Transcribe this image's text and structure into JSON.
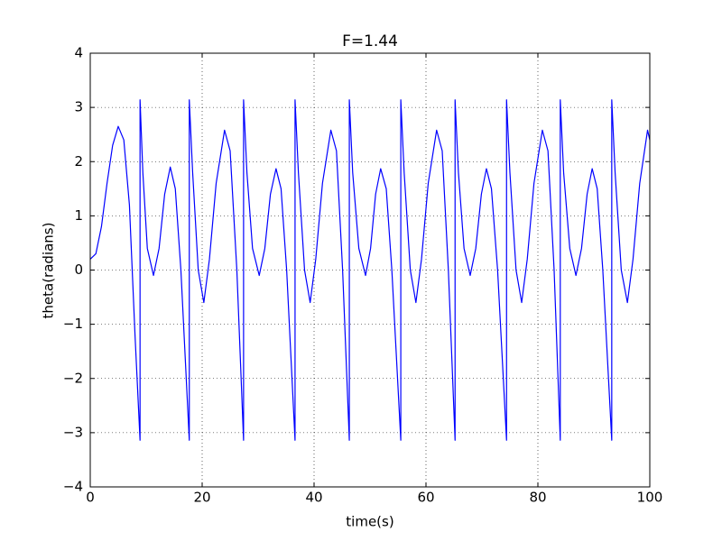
{
  "chart_data": {
    "type": "line",
    "title": "F=1.44",
    "xlabel": "time(s)",
    "ylabel": "theta(radians)",
    "x": [
      0,
      1,
      2,
      3,
      4,
      5,
      6,
      7,
      8,
      8.9,
      8.9,
      9.4,
      10.2,
      11.3,
      12.3,
      13.3,
      14.3,
      15.2,
      16.2,
      17.7,
      17.7,
      18.3,
      19.3,
      20.3,
      21.3,
      22.5,
      24,
      25,
      26.2,
      27.4,
      27.4,
      28,
      29,
      30.2,
      31.2,
      32.2,
      33.2,
      34.1,
      35.1,
      36.6,
      36.6,
      37.2,
      38.3,
      39.3,
      40.3,
      41.5,
      43,
      44,
      45.1,
      46.3,
      46.3,
      46.9,
      48,
      49.2,
      50.1,
      51,
      51.9,
      52.9,
      53.9,
      55.5,
      55.5,
      56.1,
      57.2,
      58.2,
      59.2,
      60.4,
      61.9,
      62.9,
      64,
      65.2,
      65.2,
      65.8,
      66.8,
      67.9,
      68.9,
      69.9,
      70.8,
      71.7,
      72.8,
      74.4,
      74.4,
      75,
      76.1,
      77.1,
      78.1,
      79.3,
      80.8,
      81.8,
      82.9,
      84,
      84,
      84.6,
      85.7,
      86.8,
      87.8,
      88.8,
      89.7,
      90.6,
      91.6,
      93.2,
      93.2,
      93.8,
      94.9,
      96,
      97,
      98.2,
      99.6,
      100
    ],
    "series": [
      {
        "name": "theta",
        "color": "#0000ff",
        "values": [
          0.2,
          0.3,
          0.8,
          1.6,
          2.3,
          2.65,
          2.4,
          1.2,
          -1.2,
          -3.14,
          3.14,
          1.8,
          0.4,
          -0.1,
          0.4,
          1.4,
          1.9,
          1.5,
          0,
          -3.14,
          3.14,
          1.8,
          0,
          -0.6,
          0.2,
          1.6,
          2.58,
          2.2,
          0,
          -3.14,
          3.14,
          1.8,
          0.4,
          -0.1,
          0.4,
          1.4,
          1.87,
          1.5,
          0,
          -3.14,
          3.14,
          1.8,
          0,
          -0.6,
          0.2,
          1.6,
          2.58,
          2.2,
          0,
          -3.14,
          3.14,
          1.8,
          0.4,
          -0.1,
          0.4,
          1.4,
          1.87,
          1.5,
          0,
          -3.14,
          3.14,
          1.8,
          0,
          -0.6,
          0.2,
          1.6,
          2.58,
          2.2,
          0,
          -3.14,
          3.14,
          1.8,
          0.4,
          -0.1,
          0.4,
          1.4,
          1.87,
          1.5,
          0,
          -3.14,
          3.14,
          1.8,
          0,
          -0.6,
          0.2,
          1.6,
          2.58,
          2.2,
          0,
          -3.14,
          3.14,
          1.8,
          0.4,
          -0.1,
          0.4,
          1.4,
          1.87,
          1.5,
          0,
          -3.14,
          3.14,
          1.8,
          0,
          -0.6,
          0.2,
          1.6,
          2.58,
          2.4
        ]
      }
    ],
    "xlim": [
      0,
      100
    ],
    "xticks": [
      0,
      20,
      40,
      60,
      80,
      100
    ],
    "ylim": [
      -4,
      4
    ],
    "yticks": [
      {
        "value": -4,
        "label": "−4"
      },
      {
        "value": -3,
        "label": "−3"
      },
      {
        "value": -2,
        "label": "−2"
      },
      {
        "value": -1,
        "label": "−1"
      },
      0,
      1,
      2,
      3,
      4
    ],
    "grid": true
  }
}
